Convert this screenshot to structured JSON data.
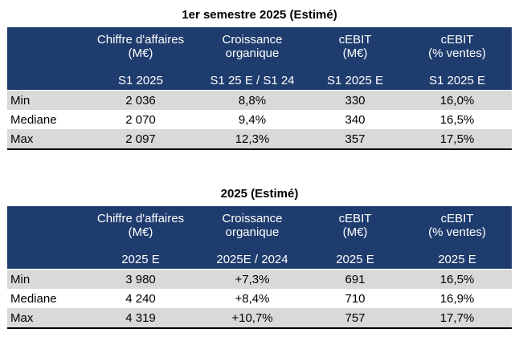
{
  "tables": [
    {
      "title": "1er semestre 2025 (Estimé)",
      "headers": {
        "line1": [
          "",
          "Chiffre d'affaires",
          "Croissance",
          "cEBIT",
          "cEBIT"
        ],
        "line2": [
          "",
          "(M€)",
          "organique",
          "(M€)",
          "(% ventes)"
        ],
        "line3": [
          "",
          "S1 2025",
          "S1 25 E / S1 24",
          "S1 2025 E",
          "S1 2025 E"
        ]
      },
      "rows": [
        [
          "Min",
          "2 036",
          "8,8%",
          "330",
          "16,0%"
        ],
        [
          "Mediane",
          "2 070",
          "9,4%",
          "340",
          "16,5%"
        ],
        [
          "Max",
          "2 097",
          "12,3%",
          "357",
          "17,5%"
        ]
      ]
    },
    {
      "title": "2025 (Estimé)",
      "headers": {
        "line1": [
          "",
          "Chiffre d'affaires",
          "Croissance",
          "cEBIT",
          "cEBIT"
        ],
        "line2": [
          "",
          "(M€)",
          "organique",
          "(M€)",
          "(% ventes)"
        ],
        "line3": [
          "",
          "2025 E",
          "2025E / 2024",
          "2025 E",
          "2025 E"
        ]
      },
      "rows": [
        [
          "Min",
          "3 980",
          "+7,3%",
          "691",
          "16,5%"
        ],
        [
          "Mediane",
          "4 240",
          "+8,4%",
          "710",
          "16,9%"
        ],
        [
          "Max",
          "4 319",
          "+10,7%",
          "757",
          "17,7%"
        ]
      ]
    }
  ],
  "colors": {
    "header_bg": "#1f3c6e",
    "header_text": "#ffffff",
    "row_shade": "#d9d9d9"
  }
}
